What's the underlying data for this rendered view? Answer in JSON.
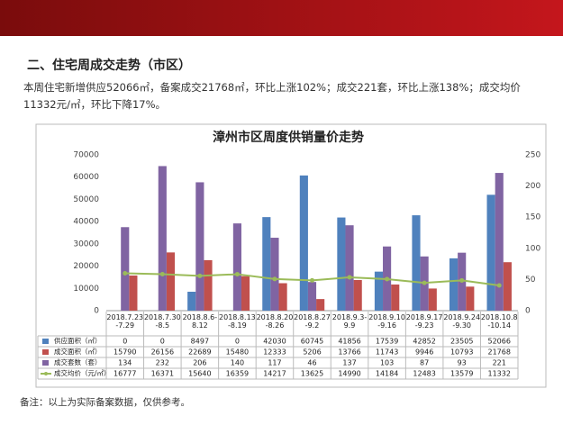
{
  "header": {
    "title": "二、住宅周成交走势（市区）",
    "summary": "本周住宅新增供应52066㎡，备案成交21768㎡，环比上涨102%；成交221套，环比上涨138%；成交均价11332元/㎡，环比下降17%。"
  },
  "chart_data": {
    "type": "combo",
    "title": "漳州市区周度供销量价走势",
    "categories": [
      "2018.7.23-7.29",
      "2018.7.30-8.5",
      "2018.8.6-8.12",
      "2018.8.13-8.19",
      "2018.8.20-8.26",
      "2018.8.27-9.2",
      "2018.9.3-9.9",
      "2018.9.10-9.16",
      "2018.9.17-9.23",
      "2018.9.24-9.30",
      "2018.10.8-10.14"
    ],
    "series": [
      {
        "name": "供应面积（㎡）",
        "color": "#4f81bd",
        "type": "bar",
        "values": [
          0,
          0,
          8497,
          0,
          42030,
          60745,
          41856,
          17539,
          42852,
          23505,
          52066
        ]
      },
      {
        "name": "成交面积（㎡）",
        "color": "#c0504d",
        "type": "bar",
        "values": [
          15790,
          26156,
          22689,
          15480,
          12333,
          5206,
          13766,
          11743,
          9946,
          10793,
          21768
        ]
      },
      {
        "name": "成交套数（套）",
        "color": "#8064a2",
        "type": "bar",
        "axis": "y2",
        "values": [
          134,
          232,
          206,
          140,
          117,
          46,
          137,
          103,
          87,
          93,
          221
        ]
      },
      {
        "name": "成交均价（元/㎡）",
        "color": "#9bbb59",
        "type": "line",
        "values": [
          16777,
          16371,
          15640,
          16359,
          14217,
          13625,
          14990,
          14184,
          12483,
          13579,
          11332
        ]
      }
    ],
    "ylim": [
      0,
      70000
    ],
    "yticks": [
      0,
      10000,
      20000,
      30000,
      40000,
      50000,
      60000,
      70000
    ],
    "y2lim": [
      0,
      250
    ],
    "y2ticks": [
      0,
      50,
      100,
      150,
      200,
      250
    ]
  },
  "footer": {
    "note": "备注：以上为实际备案数据，仅供参考。"
  }
}
